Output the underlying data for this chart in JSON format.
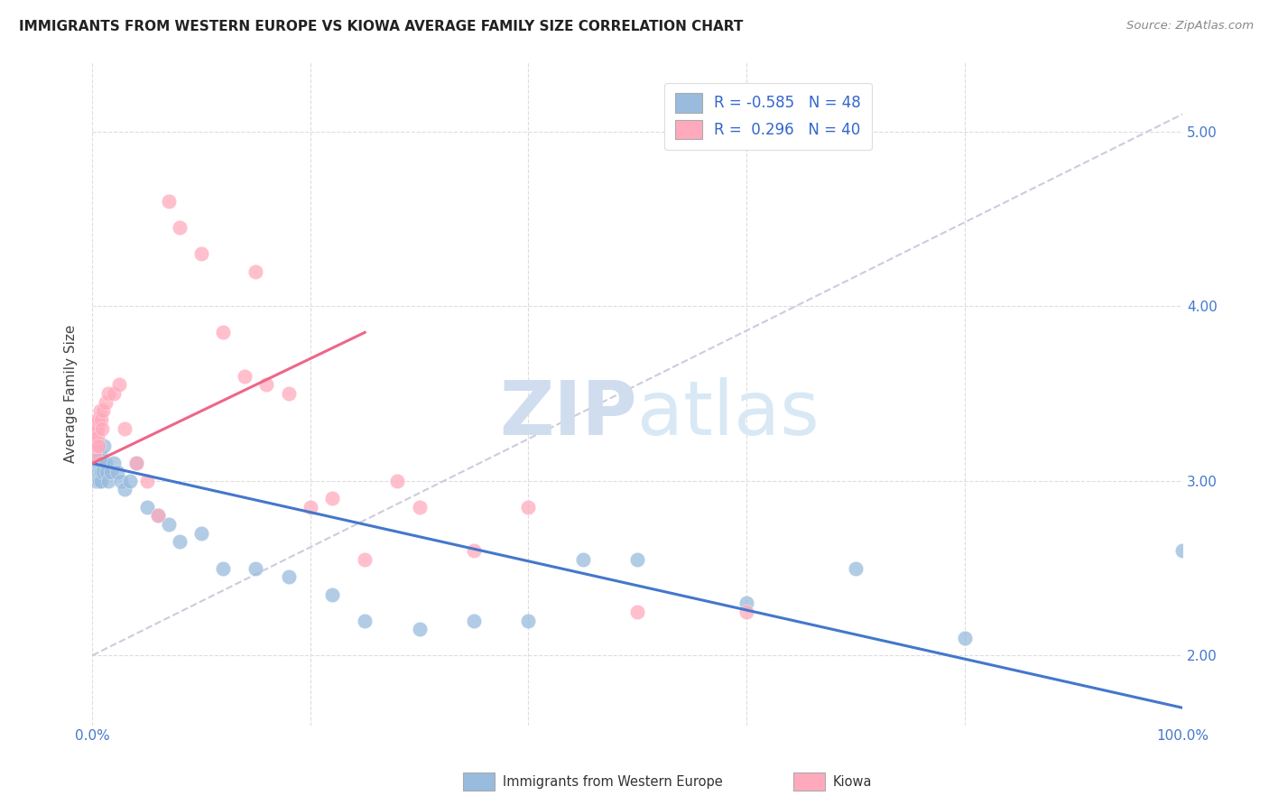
{
  "title": "IMMIGRANTS FROM WESTERN EUROPE VS KIOWA AVERAGE FAMILY SIZE CORRELATION CHART",
  "source": "Source: ZipAtlas.com",
  "ylabel": "Average Family Size",
  "yticks": [
    2.0,
    3.0,
    4.0,
    5.0
  ],
  "legend_blue_r": "-0.585",
  "legend_blue_n": "48",
  "legend_pink_r": "0.296",
  "legend_pink_n": "40",
  "legend_label_blue": "Immigrants from Western Europe",
  "legend_label_pink": "Kiowa",
  "blue_color": "#99BBDD",
  "pink_color": "#FFAABC",
  "blue_line_color": "#4477CC",
  "pink_line_color": "#EE6688",
  "diagonal_color": "#CCCCDD",
  "watermark_zip": "ZIP",
  "watermark_atlas": "atlas",
  "blue_scatter_x": [
    0.1,
    0.15,
    0.2,
    0.25,
    0.3,
    0.35,
    0.4,
    0.45,
    0.5,
    0.55,
    0.6,
    0.65,
    0.7,
    0.75,
    0.8,
    0.85,
    0.9,
    1.0,
    1.1,
    1.2,
    1.3,
    1.5,
    1.7,
    2.0,
    2.3,
    2.6,
    3.0,
    3.5,
    4.0,
    5.0,
    6.0,
    7.0,
    8.0,
    10.0,
    12.0,
    15.0,
    18.0,
    22.0,
    25.0,
    30.0,
    35.0,
    40.0,
    45.0,
    50.0,
    60.0,
    70.0,
    80.0,
    100.0
  ],
  "blue_scatter_y": [
    3.15,
    3.2,
    3.1,
    3.25,
    3.0,
    3.1,
    3.15,
    3.2,
    3.1,
    3.05,
    3.1,
    3.0,
    3.15,
    3.1,
    3.05,
    3.0,
    3.1,
    3.05,
    3.2,
    3.1,
    3.05,
    3.0,
    3.05,
    3.1,
    3.05,
    3.0,
    2.95,
    3.0,
    3.1,
    2.85,
    2.8,
    2.75,
    2.65,
    2.7,
    2.5,
    2.5,
    2.45,
    2.35,
    2.2,
    2.15,
    2.2,
    2.2,
    2.55,
    2.55,
    2.3,
    2.5,
    2.1,
    2.6
  ],
  "pink_scatter_x": [
    0.1,
    0.15,
    0.2,
    0.25,
    0.3,
    0.35,
    0.4,
    0.45,
    0.5,
    0.55,
    0.6,
    0.7,
    0.8,
    0.9,
    1.0,
    1.2,
    1.5,
    2.0,
    2.5,
    3.0,
    4.0,
    5.0,
    6.0,
    7.0,
    8.0,
    10.0,
    12.0,
    14.0,
    15.0,
    16.0,
    18.0,
    20.0,
    22.0,
    25.0,
    28.0,
    30.0,
    35.0,
    40.0,
    50.0,
    60.0
  ],
  "pink_scatter_y": [
    3.2,
    3.25,
    3.3,
    3.15,
    3.3,
    3.2,
    3.35,
    3.3,
    3.25,
    3.2,
    3.35,
    3.4,
    3.35,
    3.3,
    3.4,
    3.45,
    3.5,
    3.5,
    3.55,
    3.3,
    3.1,
    3.0,
    2.8,
    4.6,
    4.45,
    4.3,
    3.85,
    3.6,
    4.2,
    3.55,
    3.5,
    2.85,
    2.9,
    2.55,
    3.0,
    2.85,
    2.6,
    2.85,
    2.25,
    2.25
  ],
  "blue_line_x0": 0,
  "blue_line_y0": 3.1,
  "blue_line_x1": 100,
  "blue_line_y1": 1.7,
  "pink_line_x0": 0,
  "pink_line_y0": 3.1,
  "pink_line_x1": 25,
  "pink_line_y1": 3.85,
  "diag_x0": 0,
  "diag_y0": 2.0,
  "diag_x1": 100,
  "diag_y1": 5.1,
  "xlim": [
    0,
    100
  ],
  "ylim": [
    1.6,
    5.4
  ],
  "figsize": [
    14.06,
    8.92
  ],
  "dpi": 100
}
